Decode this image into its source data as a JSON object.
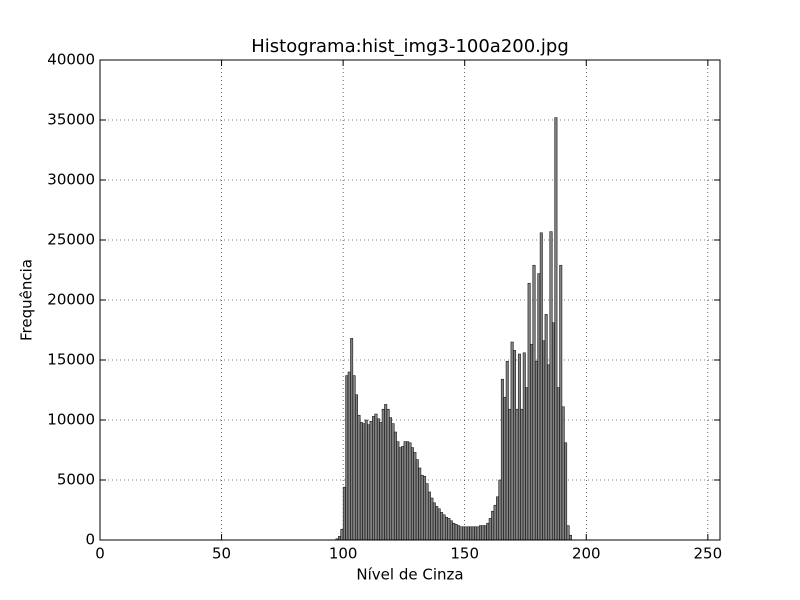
{
  "chart_data": {
    "type": "histogram",
    "title": "Histograma:hist_img3-100a200.jpg",
    "x_label": "Nível de Cinza",
    "y_label": "Frequência",
    "bins": [
      96,
      97,
      98,
      99,
      100,
      101,
      102,
      103,
      104,
      105,
      106,
      107,
      108,
      109,
      110,
      111,
      112,
      113,
      114,
      115,
      116,
      117,
      118,
      119,
      120,
      121,
      122,
      123,
      124,
      125,
      126,
      127,
      128,
      129,
      130,
      131,
      132,
      133,
      134,
      135,
      136,
      137,
      138,
      139,
      140,
      141,
      142,
      143,
      144,
      145,
      146,
      147,
      148,
      149,
      150,
      151,
      152,
      153,
      154,
      155,
      156,
      157,
      158,
      159,
      160,
      161,
      162,
      163,
      164,
      165,
      166,
      167,
      168,
      169,
      170,
      171,
      172,
      173,
      174,
      175,
      176,
      177,
      178,
      179,
      180,
      181,
      182,
      183,
      184,
      185,
      186,
      187,
      188,
      189,
      190,
      191,
      192,
      193,
      194,
      195,
      196
    ],
    "values": [
      0,
      100,
      300,
      900,
      4400,
      13700,
      14000,
      16800,
      13700,
      12100,
      10400,
      9800,
      9700,
      10000,
      9600,
      9900,
      10300,
      10500,
      10100,
      9800,
      10900,
      11300,
      10900,
      10200,
      9700,
      9000,
      8200,
      7700,
      7800,
      8200,
      8200,
      8100,
      7700,
      7300,
      6700,
      6000,
      5400,
      5300,
      4700,
      4000,
      3500,
      3100,
      2800,
      2600,
      2300,
      2100,
      1900,
      1800,
      1600,
      1400,
      1300,
      1200,
      1100,
      1100,
      1100,
      1100,
      1100,
      1100,
      1100,
      1100,
      1200,
      1200,
      1200,
      1400,
      1800,
      2400,
      2900,
      3600,
      5000,
      13400,
      11900,
      14900,
      10900,
      16500,
      15800,
      10900,
      15500,
      10900,
      15600,
      12700,
      21400,
      16300,
      22900,
      14900,
      22200,
      25600,
      16600,
      18800,
      14600,
      25700,
      18100,
      35200,
      12700,
      22900,
      11100,
      8100,
      1200,
      400,
      0,
      0
    ],
    "color": "#808080",
    "xlim": [
      0,
      255
    ],
    "xticks": [
      0,
      50,
      100,
      150,
      200,
      250
    ],
    "ylim": [
      0,
      40000
    ],
    "yticks": [
      0,
      5000,
      10000,
      15000,
      20000,
      25000,
      30000,
      35000,
      40000
    ],
    "grid": true
  }
}
